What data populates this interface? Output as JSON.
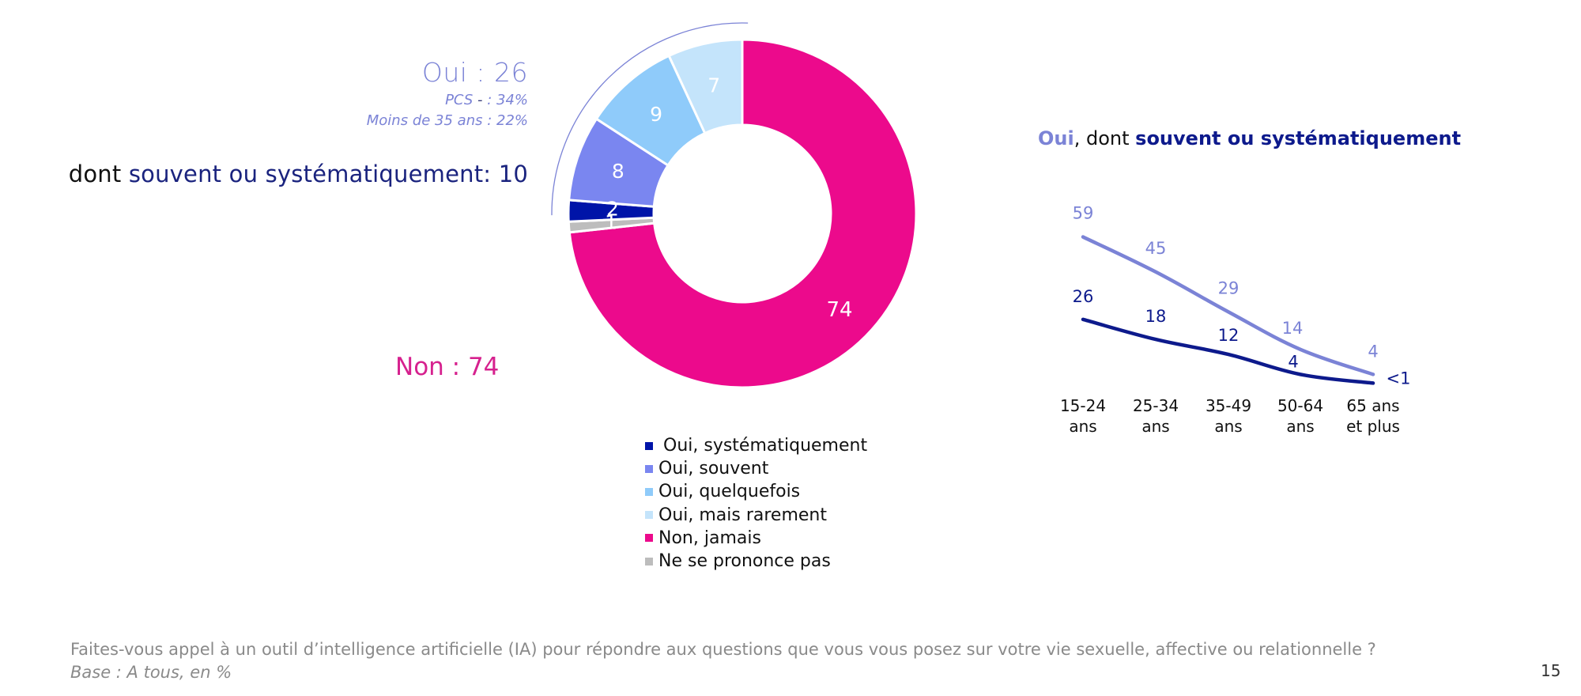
{
  "summary": {
    "oui_label": "Oui : 26",
    "oui_sub_1_prefix": "PCS ",
    "oui_sub_1_dash": "-",
    "oui_sub_1_suffix": " : 34%",
    "oui_sub_2": "Moins de 35 ans : 22%",
    "dont_prefix": "dont ",
    "dont_value": "souvent ou systématiquement: 10",
    "non_label": "Non : 74"
  },
  "colors": {
    "systematiquement": "#0014A8",
    "souvent": "#7A86F0",
    "quelquefois": "#8FCBFA",
    "rarement": "#C4E4FB",
    "non": "#EC0A8C",
    "nsp": "#BDBDBD",
    "oui_accent": "#7B83D6",
    "navy": "#0D1A8C",
    "non_text": "#D6218E"
  },
  "line_title": {
    "part_a": "Oui",
    "part_b": ", dont ",
    "part_c": "souvent ou systématiquement"
  },
  "chart_data": [
    {
      "type": "pie",
      "variant": "donut",
      "title": "",
      "start": "top, clockwise",
      "slices": [
        {
          "key": "non",
          "label": "Non, jamais",
          "value": 74,
          "data_label": "74"
        },
        {
          "key": "nsp",
          "label": "Ne se prononce pas",
          "value": 1,
          "data_label": "1"
        },
        {
          "key": "systematiquement",
          "label": "Oui, systématiquement",
          "value": 2,
          "data_label": "2"
        },
        {
          "key": "souvent",
          "label": "Oui, souvent",
          "value": 8,
          "data_label": "8"
        },
        {
          "key": "quelquefois",
          "label": "Oui, quelquefois",
          "value": 9,
          "data_label": "9"
        },
        {
          "key": "rarement",
          "label": "Oui, mais rarement",
          "value": 7,
          "data_label": "7"
        }
      ],
      "legend": [
        {
          "key": "systematiquement",
          "label": " Oui, systématiquement"
        },
        {
          "key": "souvent",
          "label": "Oui, souvent"
        },
        {
          "key": "quelquefois",
          "label": "Oui, quelquefois"
        },
        {
          "key": "rarement",
          "label": "Oui, mais rarement"
        },
        {
          "key": "non",
          "label": "Non, jamais"
        },
        {
          "key": "nsp",
          "label": "Ne se prononce pas"
        }
      ],
      "legend_position": "bottom",
      "bracket": "arc spanning the Oui slices"
    },
    {
      "type": "line",
      "title": "Oui, dont souvent ou systématiquement",
      "categories": [
        [
          "15-24",
          "ans"
        ],
        [
          "25-34",
          "ans"
        ],
        [
          "35-49",
          "ans"
        ],
        [
          "50-64",
          "ans"
        ],
        [
          "65 ans",
          "et plus"
        ]
      ],
      "series": [
        {
          "name": "Oui",
          "color_key": "oui_accent",
          "values": [
            59,
            45,
            29,
            14,
            4
          ],
          "labels": [
            "59",
            "45",
            "29",
            "14",
            "4"
          ]
        },
        {
          "name": "dont souvent ou systématiquement",
          "color_key": "navy",
          "values": [
            26,
            18,
            12,
            4,
            0.5
          ],
          "labels": [
            "26",
            "18",
            "12",
            "4",
            "<1"
          ]
        }
      ],
      "xlabel": "",
      "ylabel": "",
      "ylim": [
        0,
        60
      ],
      "grid": false,
      "axes_visible": false
    }
  ],
  "footer": {
    "question": "Faites-vous appel à un outil d’intelligence artificielle (IA) pour répondre aux questions que vous vous posez sur votre vie sexuelle, affective ou relationnelle ?",
    "base": "Base : A tous, en %",
    "page_number": "15"
  }
}
